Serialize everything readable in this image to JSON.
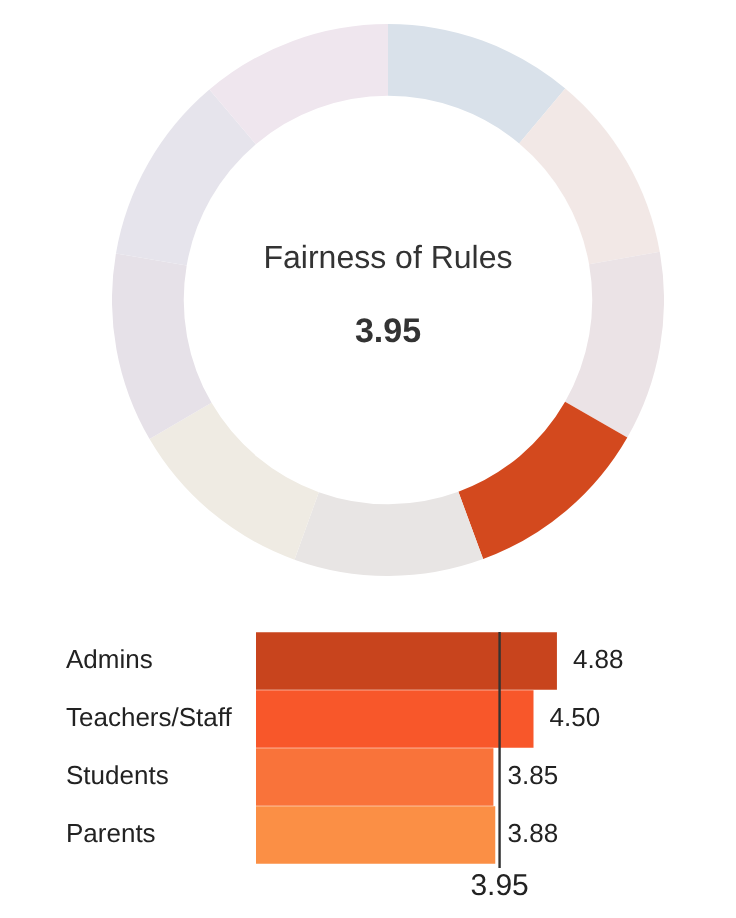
{
  "chart_data": [
    {
      "type": "donut",
      "title": "Fairness of Rules",
      "annotations": [
        "3.95"
      ],
      "categories": [
        null,
        null,
        null,
        null,
        null,
        null,
        null,
        null,
        null
      ],
      "values": [
        11.1,
        11.1,
        11.1,
        11.1,
        11.1,
        11.1,
        11.1,
        11.1,
        11.2
      ],
      "colors": [
        "#d9e1ea",
        "#f2e8e6",
        "#ebe3e6",
        "#d3491e",
        "#e8e5e4",
        "#efebe3",
        "#e6e1e8",
        "#e6e4ec",
        "#efe6ee"
      ]
    },
    {
      "type": "bar",
      "orientation": "horizontal",
      "categories": [
        "Admins",
        "Teachers/Staff",
        "Students",
        "Parents"
      ],
      "values": [
        4.88,
        4.5,
        3.85,
        3.88
      ],
      "colors": [
        "#c8441d",
        "#f8572a",
        "#f9733a",
        "#fb8f45"
      ],
      "value_labels": [
        "4.88",
        "4.50",
        "3.85",
        "3.88"
      ],
      "ref_lines": [
        {
          "axis": "x",
          "value": 3.95,
          "label": "3.95",
          "color": "#333333"
        }
      ],
      "tick_labels": "y"
    }
  ]
}
